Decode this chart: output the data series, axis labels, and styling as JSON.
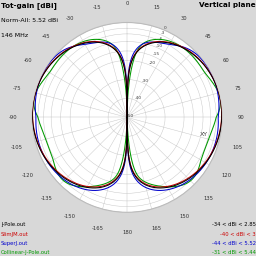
{
  "title_left": "Tot-gain [dBi]",
  "subtitle1": "Norm-All: 5.52 dBi",
  "subtitle2": "146 MHz",
  "title_right": "Vertical plane",
  "bg_color": "#d8d8d8",
  "plot_bg": "#ffffff",
  "legend": [
    {
      "label": "J-Pole.out",
      "color": "#000000"
    },
    {
      "label": "SlimJM.out",
      "color": "#cc0000"
    },
    {
      "label": "SuperJ.out",
      "color": "#0000cc"
    },
    {
      "label": "Collinear-J-Pole.out",
      "color": "#009900"
    }
  ],
  "legend_right": [
    {
      "text": "-34 < dBi < 2.85",
      "color": "#000000"
    },
    {
      "text": "-40 < dBi < 3",
      "color": "#cc0000"
    },
    {
      "text": "-44 < dBi < 5.52",
      "color": "#0000cc"
    },
    {
      "text": "-31 < dBi < 5.44",
      "color": "#009900"
    }
  ],
  "xy_label": "XY",
  "grid_color": "#bbbbbb",
  "db_min": -50,
  "db_max": 0
}
